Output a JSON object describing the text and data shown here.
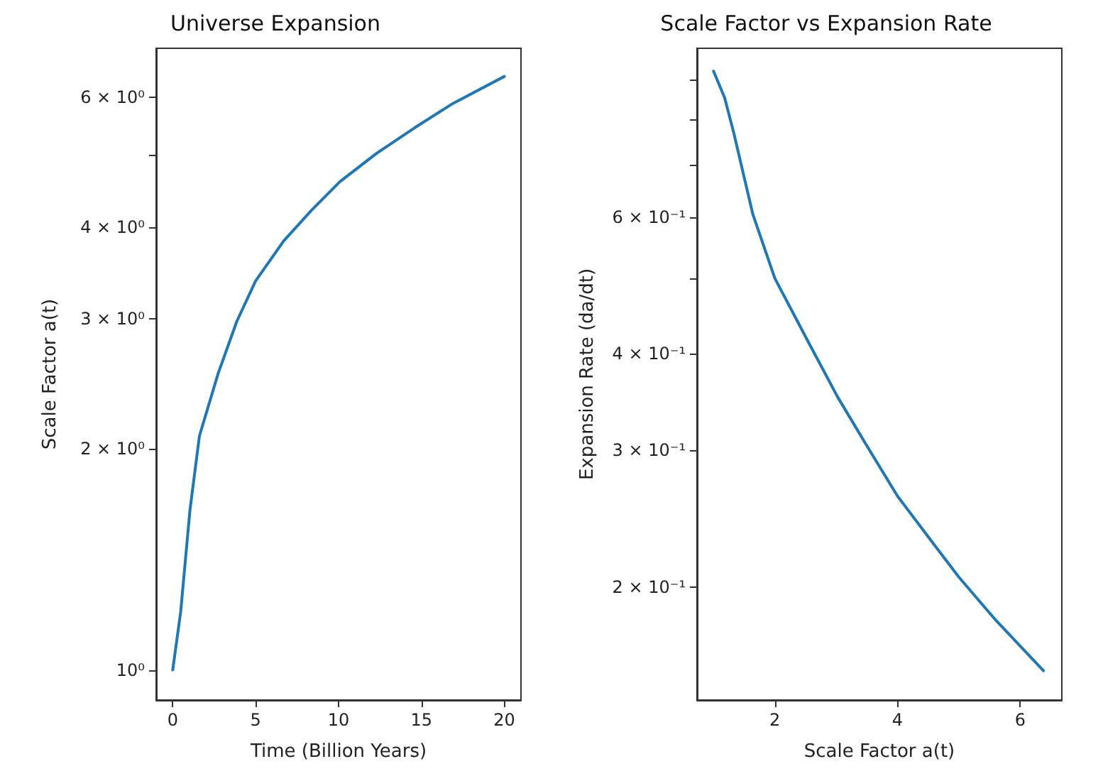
{
  "chart_data": [
    {
      "type": "line",
      "title": "Universe Expansion",
      "xlabel": "Time (Billion Years)",
      "ylabel": "Scale Factor a(t)",
      "log": "y",
      "x": [
        0,
        0.48,
        1.04,
        1.61,
        2.74,
        3.87,
        5,
        6.69,
        8.39,
        10.08,
        12.3,
        14.6,
        16.9,
        20
      ],
      "series": [
        {
          "color": "#1f77b4",
          "values": [
            1.0,
            1.2,
            1.65,
            2.08,
            2.53,
            2.98,
            3.38,
            3.83,
            4.22,
            4.61,
            5.04,
            5.46,
            5.89,
            6.41
          ]
        }
      ],
      "xlim": [
        -1,
        21
      ],
      "ylim": [
        0.91,
        7.0
      ],
      "xticks": [
        0,
        5,
        10,
        15,
        20
      ],
      "yticks": [
        {
          "value": 1,
          "label": "10⁰"
        },
        {
          "value": 2,
          "label": "2 × 10⁰"
        },
        {
          "value": 3,
          "label": "3 × 10⁰"
        },
        {
          "value": 4,
          "label": "4 × 10⁰"
        },
        {
          "value": 5,
          "label": null
        },
        {
          "value": 6,
          "label": "6 × 10⁰"
        }
      ]
    },
    {
      "type": "line",
      "title": "Scale Factor vs Expansion Rate",
      "xlabel": "Scale Factor a(t)",
      "ylabel": "Expansion Rate (da/dt)",
      "log": "y",
      "x": [
        1.0,
        1.18,
        1.33,
        1.64,
        2.0,
        2.56,
        3.02,
        3.48,
        4.0,
        4.54,
        5.0,
        5.61,
        6.38
      ],
      "series": [
        {
          "color": "#1f77b4",
          "values": [
            0.925,
            0.855,
            0.77,
            0.605,
            0.5,
            0.412,
            0.352,
            0.306,
            0.262,
            0.23,
            0.206,
            0.181,
            0.156
          ]
        }
      ],
      "xlim": [
        0.73,
        6.68
      ],
      "ylim": [
        0.143,
        0.99
      ],
      "xticks": [
        2,
        4,
        6
      ],
      "yticks": [
        {
          "value": 0.2,
          "label": "2 × 10⁻¹"
        },
        {
          "value": 0.3,
          "label": "3 × 10⁻¹"
        },
        {
          "value": 0.4,
          "label": "4 × 10⁻¹"
        },
        {
          "value": 0.5,
          "label": null
        },
        {
          "value": 0.6,
          "label": "6 × 10⁻¹"
        },
        {
          "value": 0.7,
          "label": null
        },
        {
          "value": 0.8,
          "label": null
        },
        {
          "value": 0.9,
          "label": null
        }
      ]
    }
  ]
}
